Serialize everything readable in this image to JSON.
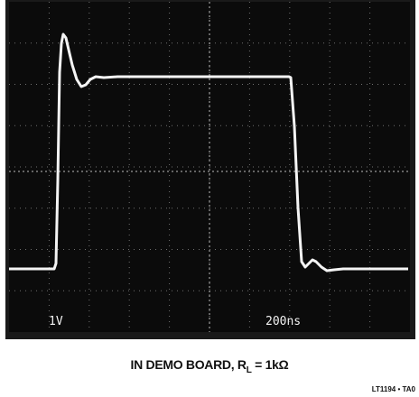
{
  "scope": {
    "volts_per_div": "1V",
    "time_per_div": "200ns"
  },
  "caption": {
    "prefix": "IN DEMO BOARD, R",
    "subscript": "L",
    "suffix": " = 1kΩ"
  },
  "figure_id": "LT1194 • TA0"
}
